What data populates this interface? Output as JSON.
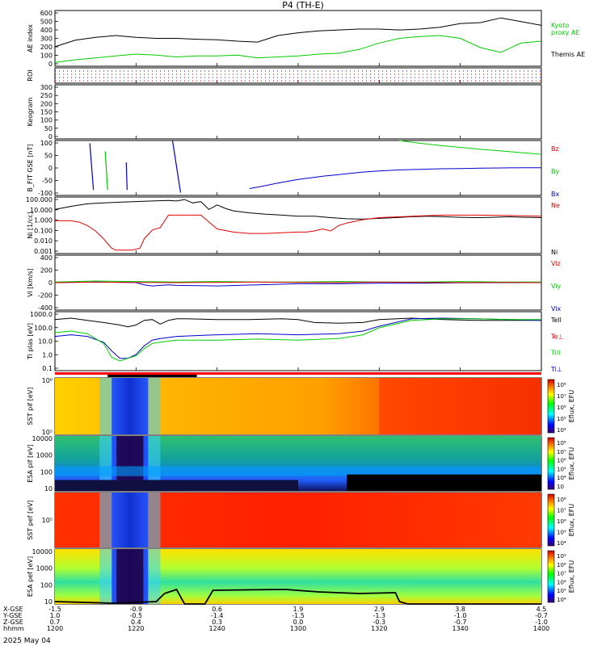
{
  "title": "P4 (TH-E)",
  "date_label": "2025 May 04",
  "colors": {
    "black": "#000000",
    "red": "#e00000",
    "green": "#00cc00",
    "blue": "#0000cc",
    "orange": "#ff6a00"
  },
  "chart_data": {
    "type": "line",
    "x_axis": {
      "name": "hhmm",
      "range": [
        1200,
        1400
      ],
      "ticks": [
        {
          "time": "1200",
          "xgse": "-1.5",
          "ygse": "1.0",
          "zgse": "0.7"
        },
        {
          "time": "1220",
          "xgse": "-0.9",
          "ygse": "-0.5",
          "zgse": "0.4"
        },
        {
          "time": "1240",
          "xgse": "0.6",
          "ygse": "-1.4",
          "zgse": "0.3"
        },
        {
          "time": "1300",
          "xgse": "1.9",
          "ygse": "-1.5",
          "zgse": "0.0"
        },
        {
          "time": "1320",
          "xgse": "2.9",
          "ygse": "-1.3",
          "zgse": "-0.3"
        },
        {
          "time": "1340",
          "xgse": "3.8",
          "ygse": "-1.0",
          "zgse": "-0.7"
        },
        {
          "time": "1400",
          "xgse": "4.5",
          "ygse": "-0.7",
          "zgse": "-1.0"
        }
      ],
      "row_labels": [
        "X-GSE",
        "Y-GSE",
        "Z-GSE",
        "hhmm"
      ]
    },
    "panels": [
      {
        "id": "ae",
        "ylabel": "AE index",
        "yticks": [
          "600",
          "500",
          "400",
          "300",
          "200",
          "100",
          "0"
        ],
        "ylim": [
          0,
          600
        ],
        "legend": [
          "Kyoto",
          "proxy AE",
          "Themis AE"
        ],
        "series": [
          {
            "name": "Themis AE",
            "color": "#000000",
            "x": [
              0,
              5,
              10,
              15,
              20,
              25,
              30,
              35,
              40,
              45,
              50,
              55,
              60,
              65,
              70,
              75,
              80,
              85,
              90,
              95,
              100,
              105,
              110,
              115,
              120
            ],
            "y": [
              210,
              280,
              310,
              330,
              310,
              300,
              300,
              290,
              285,
              270,
              260,
              330,
              360,
              380,
              390,
              400,
              400,
              390,
              400,
              420,
              460,
              470,
              520,
              480,
              440
            ]
          },
          {
            "name": "proxy AE",
            "color": "#00cc00",
            "x": [
              0,
              5,
              10,
              15,
              20,
              25,
              30,
              35,
              40,
              45,
              50,
              55,
              60,
              65,
              70,
              75,
              80,
              85,
              90,
              95,
              100,
              105,
              110,
              115,
              120
            ],
            "y": [
              40,
              70,
              90,
              110,
              130,
              120,
              100,
              110,
              110,
              120,
              90,
              100,
              110,
              130,
              140,
              180,
              250,
              300,
              320,
              330,
              300,
              200,
              150,
              250,
              270
            ]
          }
        ]
      },
      {
        "id": "roi",
        "ylabel": "ROI",
        "yticks": [],
        "ylim": [
          0,
          1
        ],
        "series": []
      },
      {
        "id": "keogram",
        "ylabel": "Keogram",
        "yticks": [
          "300",
          "250",
          "200",
          "150",
          "100",
          "50",
          "0"
        ],
        "ylim": [
          0,
          300
        ],
        "series": []
      },
      {
        "id": "bfgm",
        "ylabel": "B_FIT GSE [nT]",
        "yticks": [
          "100",
          "50",
          "0",
          "-50",
          "-100"
        ],
        "ylim": [
          -100,
          100
        ],
        "legend": [
          "Bz",
          "By",
          "Bx"
        ],
        "series": [
          {
            "name": "Bx",
            "color": "#0000cc",
            "x": [
              48,
              50,
              52,
              54,
              56,
              58,
              60,
              62,
              64,
              66,
              68,
              70,
              72,
              74,
              76,
              78,
              80,
              85,
              90,
              95,
              100,
              105,
              110,
              115,
              120
            ],
            "y": [
              -75,
              -70,
              -64,
              -58,
              -52,
              -47,
              -42,
              -38,
              -34,
              -30,
              -27,
              -24,
              -21,
              -18,
              -15,
              -13,
              -11,
              -7,
              -5,
              -3,
              -2,
              -1,
              0,
              1,
              1
            ]
          },
          {
            "name": "By",
            "color": "#00cc00",
            "x": [
              85,
              90,
              95,
              100,
              105,
              110,
              115,
              120
            ],
            "y": [
              100,
              90,
              82,
              75,
              68,
              62,
              56,
              50
            ]
          }
        ],
        "spikes": [
          {
            "name": "Bx",
            "x": [
              8.6,
              9.5
            ],
            "y": [
              90,
              -80
            ]
          },
          {
            "name": "By",
            "x": [
              12.4,
              13.0
            ],
            "y": [
              60,
              -80
            ]
          },
          {
            "name": "Bx",
            "x": [
              17.6,
              17.8
            ],
            "y": [
              20,
              -80
            ]
          },
          {
            "name": "Bx",
            "x": [
              29.0,
              31.0
            ],
            "y": [
              100,
              -90
            ]
          }
        ]
      },
      {
        "id": "ni",
        "ylabel": "Ni [1/cc]",
        "yticks": [
          "100.000",
          "10.000",
          "1.000",
          "0.100",
          "0.010",
          "0.001"
        ],
        "ylim": [
          0.001,
          100
        ],
        "log": true,
        "legend": [
          "Ne",
          "Ni"
        ],
        "series": [
          {
            "name": "Ni",
            "color": "#000000",
            "x": [
              0,
              4,
              8,
              12,
              16,
              20,
              24,
              28,
              30,
              32,
              34,
              36,
              38,
              40,
              42,
              44,
              48,
              52,
              56,
              60,
              64,
              68,
              72,
              76,
              80,
              84,
              88,
              92,
              96,
              100,
              104,
              108,
              112,
              116,
              120
            ],
            "y": [
              8,
              15,
              25,
              30,
              35,
              40,
              45,
              50,
              45,
              60,
              30,
              40,
              8,
              20,
              10,
              6,
              4,
              3,
              2.5,
              2,
              2,
              1.5,
              1.2,
              1.1,
              1.3,
              1.5,
              1.8,
              2,
              1.8,
              1.6,
              1.5,
              1.6,
              1.8,
              1.6,
              1.5
            ]
          },
          {
            "name": "Ne",
            "color": "#e00000",
            "x": [
              0,
              2,
              4,
              6,
              8,
              10,
              12,
              14,
              15,
              17,
              19,
              21,
              22,
              24,
              26,
              28,
              29,
              30,
              32,
              36,
              40,
              44,
              48,
              52,
              56,
              60,
              62,
              64,
              66,
              68,
              70,
              72,
              76,
              80,
              88,
              96,
              104,
              112,
              120
            ],
            "y": [
              0.8,
              0.8,
              0.8,
              0.6,
              0.3,
              0.1,
              0.02,
              0.003,
              0.002,
              0.002,
              0.002,
              0.003,
              0.02,
              0.12,
              0.2,
              2.5,
              2.5,
              2.5,
              2.5,
              2.5,
              0.15,
              0.08,
              0.06,
              0.06,
              0.07,
              0.08,
              0.08,
              0.1,
              0.15,
              0.1,
              0.3,
              0.5,
              1,
              1.5,
              2,
              2.5,
              2.5,
              2.3,
              2
            ]
          }
        ]
      },
      {
        "id": "vi",
        "ylabel": "Vi [km/s]",
        "yticks": [
          "400",
          "200",
          "0",
          "-200",
          "-400"
        ],
        "ylim": [
          -500,
          500
        ],
        "legend": [
          "Viz",
          "Viy",
          "Vix"
        ],
        "series": [
          {
            "name": "Vix",
            "color": "#0000cc",
            "x": [
              0,
              10,
              20,
              22,
              24,
              26,
              28,
              30,
              40,
              50,
              60,
              70,
              80,
              90,
              100,
              110,
              120
            ],
            "y": [
              0,
              10,
              0,
              -40,
              -60,
              -50,
              -40,
              -50,
              -60,
              -40,
              -20,
              -20,
              -10,
              -10,
              -5,
              0,
              0
            ]
          },
          {
            "name": "Viy",
            "color": "#00cc00",
            "x": [
              0,
              10,
              20,
              30,
              40,
              50,
              60,
              70,
              80,
              90,
              100,
              110,
              120
            ],
            "y": [
              10,
              30,
              20,
              10,
              20,
              10,
              10,
              20,
              10,
              10,
              20,
              10,
              10
            ]
          },
          {
            "name": "Viz",
            "color": "#e00000",
            "x": [
              0,
              10,
              20,
              30,
              40,
              50,
              60,
              70,
              80,
              90,
              100,
              110,
              120
            ],
            "y": [
              0,
              10,
              5,
              0,
              5,
              10,
              5,
              0,
              10,
              5,
              0,
              5,
              0
            ]
          }
        ]
      },
      {
        "id": "ti",
        "ylabel": "Ti plas [eV]",
        "yticks": [
          "1000.0",
          "100.0",
          "10.0",
          "1.0",
          "0.1"
        ],
        "ylim": [
          0.05,
          3000
        ],
        "log": true,
        "legend": [
          "Tell",
          "Te⊥",
          "Till",
          "Ti⊥"
        ],
        "series": [
          {
            "name": "Tell",
            "color": "#000000",
            "x": [
              0,
              4,
              8,
              12,
              16,
              18,
              20,
              22,
              24,
              26,
              28,
              30,
              32,
              40,
              48,
              56,
              60,
              64,
              70,
              76,
              80,
              88,
              96,
              104,
              112,
              120
            ],
            "y": [
              700,
              900,
              600,
              400,
              250,
              180,
              250,
              600,
              700,
              300,
              600,
              800,
              800,
              700,
              700,
              800,
              700,
              400,
              350,
              400,
              700,
              900,
              700,
              600,
              600,
              600
            ]
          },
          {
            "name": "Ti⊥",
            "color": "#0000cc",
            "x": [
              0,
              4,
              8,
              12,
              14,
              16,
              18,
              20,
              22,
              24,
              26,
              30,
              40,
              50,
              60,
              70,
              76,
              80,
              88,
              96,
              104,
              112,
              120
            ],
            "y": [
              30,
              40,
              30,
              10,
              2,
              0.5,
              0.5,
              1,
              5,
              15,
              20,
              30,
              40,
              50,
              40,
              50,
              80,
              200,
              800,
              900,
              800,
              700,
              600
            ]
          },
          {
            "name": "Till",
            "color": "#00cc00",
            "x": [
              0,
              4,
              8,
              12,
              14,
              16,
              18,
              20,
              22,
              24,
              26,
              30,
              40,
              50,
              60,
              70,
              76,
              80,
              88,
              96,
              104,
              112,
              120
            ],
            "y": [
              60,
              80,
              50,
              8,
              0.6,
              0.3,
              0.5,
              0.8,
              3,
              8,
              10,
              15,
              15,
              18,
              15,
              20,
              40,
              150,
              600,
              800,
              800,
              700,
              700
            ]
          }
        ]
      },
      {
        "id": "sst_i",
        "ylabel": "SST pif [eV]",
        "yticks": [
          "10⁶",
          "10⁵"
        ],
        "colorbar_ticks": [
          "10⁸",
          "10⁷",
          "10⁶",
          "10⁵",
          "10⁴"
        ],
        "colorbar_label": "Eflux, EFU"
      },
      {
        "id": "esa_i",
        "ylabel": "ESA pif [eV]",
        "yticks": [
          "10000",
          "1000",
          "100",
          "10"
        ],
        "colorbar_ticks": [
          "10⁸",
          "10⁷",
          "10⁶",
          "10⁵",
          "10⁴",
          "10⁳"
        ],
        "colorbar_label": "Eflux, EFU"
      },
      {
        "id": "sst_e",
        "ylabel": "SST pef [eV]",
        "yticks": [
          "10⁵"
        ],
        "colorbar_ticks": [
          "10⁸",
          "10⁷",
          "10⁶",
          "10⁵",
          "10⁴"
        ],
        "colorbar_label": "Eflux, EFU"
      },
      {
        "id": "esa_e",
        "ylabel": "ESA pef [eV]",
        "yticks": [
          "10000",
          "1000",
          "100",
          "10"
        ],
        "colorbar_ticks": [
          "10⁹",
          "10⁸",
          "10⁷",
          "10⁶",
          "10⁵",
          "10⁴"
        ],
        "colorbar_label": "Eflux, EFU"
      }
    ]
  }
}
